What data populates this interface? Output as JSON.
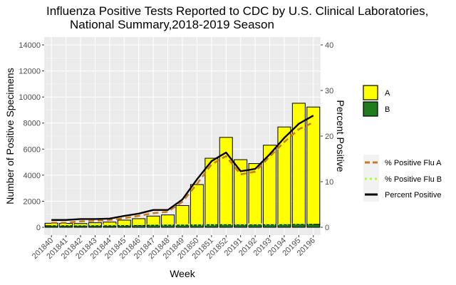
{
  "chart_data": {
    "type": "bar",
    "title": "Influenza Positive Tests Reported to CDC by U.S. Clinical Laboratories,",
    "subtitle": "National Summary,2018-2019 Season",
    "xlabel": "Week",
    "ylabel": "Number of Positive Specimens",
    "y2label": "Percent Positive",
    "categories": [
      "201840",
      "201841",
      "201842",
      "201843",
      "201844",
      "201845",
      "201846",
      "201847",
      "201848",
      "201849",
      "201850",
      "201851",
      "201852",
      "20191",
      "20192",
      "20193",
      "20194",
      "20195",
      "20196"
    ],
    "ylim": [
      0,
      14000
    ],
    "yticks": [
      "0",
      "2000",
      "4000",
      "6000",
      "8000",
      "10000",
      "12000",
      "14000"
    ],
    "y2lim": [
      0,
      40
    ],
    "y2ticks": [
      "0",
      "10",
      "20",
      "30",
      "40"
    ],
    "grid": true,
    "legend_position": "right",
    "series": [
      {
        "name": "A",
        "kind": "bar",
        "color": "#ffff00",
        "values": [
          190,
          180,
          180,
          230,
          280,
          420,
          520,
          700,
          780,
          1500,
          3100,
          5100,
          6700,
          5000,
          4700,
          6100,
          7500,
          9300,
          9000
        ]
      },
      {
        "name": "B",
        "kind": "bar",
        "color": "#1e7b1e",
        "values": [
          120,
          120,
          110,
          120,
          120,
          130,
          140,
          160,
          170,
          170,
          180,
          200,
          200,
          190,
          190,
          200,
          200,
          220,
          230
        ]
      },
      {
        "name": "% Positive Flu A",
        "kind": "line",
        "axis": "right",
        "color": "#cc7a1f",
        "dash": "dashed",
        "values": [
          1.0,
          1.0,
          1.3,
          1.4,
          1.6,
          2.0,
          2.5,
          3.1,
          3.4,
          5.6,
          9.5,
          13.8,
          15.6,
          11.6,
          12.2,
          15.5,
          18.7,
          21.5,
          23.0
        ]
      },
      {
        "name": "% Positive Flu B",
        "kind": "line",
        "axis": "right",
        "color": "#adff2f",
        "dash": "dotted",
        "values": [
          0.5,
          0.5,
          0.5,
          0.5,
          0.5,
          0.5,
          0.6,
          0.6,
          0.6,
          0.6,
          0.6,
          0.6,
          0.7,
          0.7,
          0.7,
          0.7,
          0.7,
          0.8,
          0.8
        ]
      },
      {
        "name": "Percent Positive",
        "kind": "line",
        "axis": "right",
        "color": "#000000",
        "dash": "solid",
        "values": [
          1.6,
          1.6,
          1.8,
          1.8,
          1.9,
          2.5,
          3.0,
          3.8,
          3.8,
          6.1,
          10.5,
          14.5,
          16.4,
          12.3,
          12.8,
          16.0,
          19.6,
          22.7,
          24.5
        ]
      }
    ]
  }
}
